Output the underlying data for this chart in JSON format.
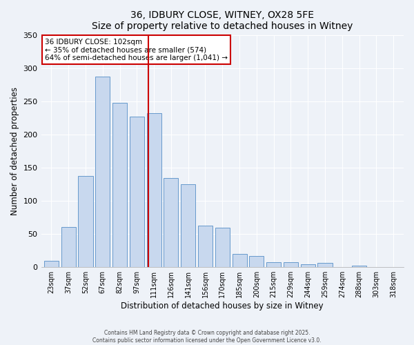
{
  "title": "36, IDBURY CLOSE, WITNEY, OX28 5FE",
  "subtitle": "Size of property relative to detached houses in Witney",
  "xlabel": "Distribution of detached houses by size in Witney",
  "ylabel": "Number of detached properties",
  "categories": [
    "23sqm",
    "37sqm",
    "52sqm",
    "67sqm",
    "82sqm",
    "97sqm",
    "111sqm",
    "126sqm",
    "141sqm",
    "156sqm",
    "170sqm",
    "185sqm",
    "200sqm",
    "215sqm",
    "229sqm",
    "244sqm",
    "259sqm",
    "274sqm",
    "288sqm",
    "303sqm",
    "318sqm"
  ],
  "bar_heights": [
    10,
    60,
    137,
    287,
    248,
    227,
    232,
    134,
    125,
    63,
    59,
    20,
    17,
    8,
    8,
    4,
    6,
    0,
    2,
    0,
    0
  ],
  "bar_color": "#c8d8ee",
  "bar_edge_color": "#6699cc",
  "vline_x": 5.67,
  "vline_color": "#cc0000",
  "ylim": [
    0,
    350
  ],
  "yticks": [
    0,
    50,
    100,
    150,
    200,
    250,
    300,
    350
  ],
  "annotation_title": "36 IDBURY CLOSE: 102sqm",
  "annotation_line1": "← 35% of detached houses are smaller (574)",
  "annotation_line2": "64% of semi-detached houses are larger (1,041) →",
  "annotation_box_color": "#ffffff",
  "annotation_box_edge_color": "#cc0000",
  "footnote1": "Contains HM Land Registry data © Crown copyright and database right 2025.",
  "footnote2": "Contains public sector information licensed under the Open Government Licence v3.0.",
  "background_color": "#eef2f8"
}
